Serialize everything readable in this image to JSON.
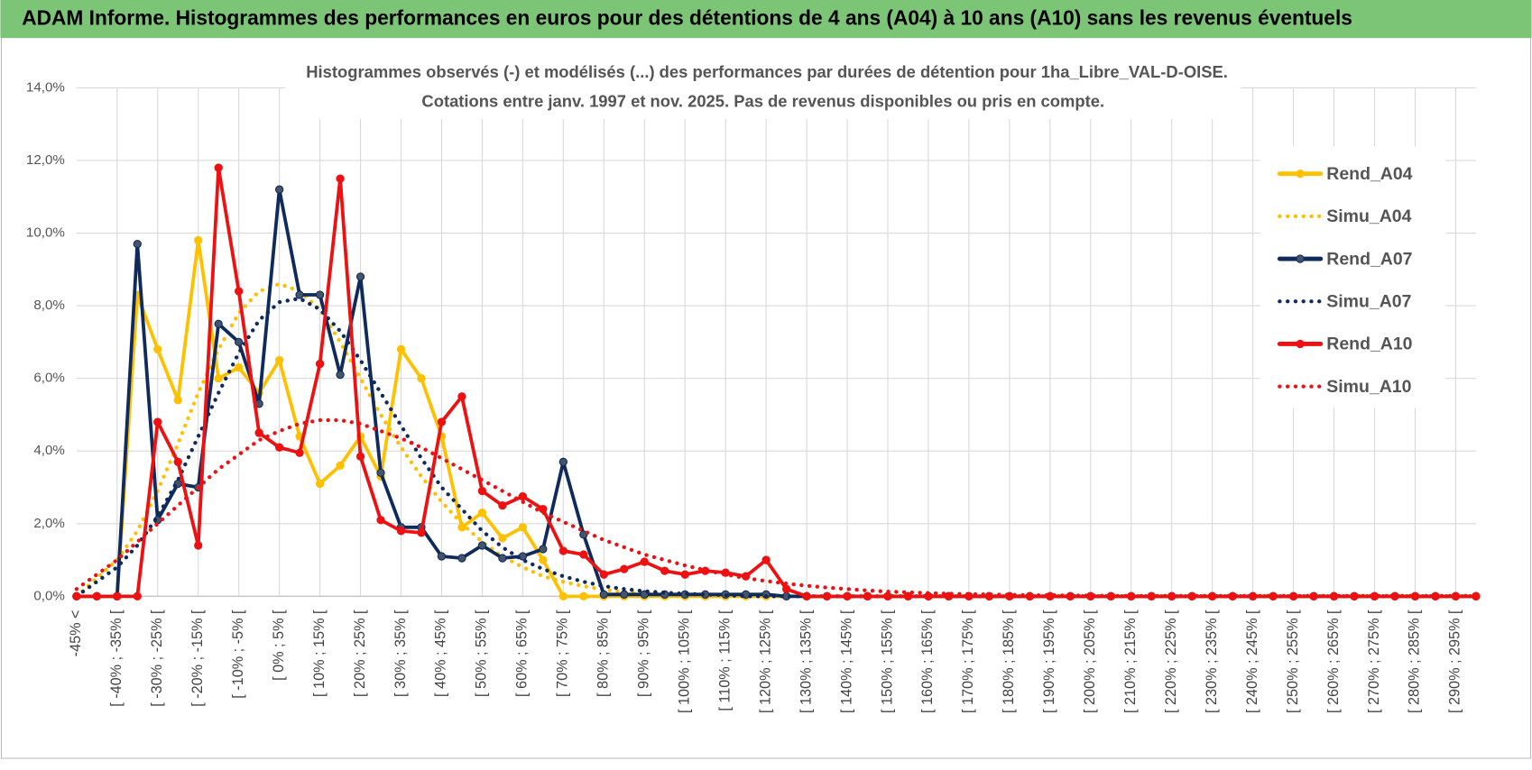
{
  "chart_data": {
    "type": "line",
    "header": "ADAM Informe. Histogrammes des performances en euros pour des détentions de 4 ans (A04) à 10 ans (A10) sans les revenus éventuels",
    "title": "Histogrammes observés (-) et modélisés (...) des performances par durées de détention pour 1ha_Libre_VAL-D-OISE.",
    "subtitle": "Cotations entre janv. 1997 et nov. 2025. Pas de revenus disponibles ou pris en compte.",
    "categories": [
      "-45% <",
      null,
      "[ -40% ; -35% [",
      null,
      "[ -30% ; -25% [",
      null,
      "[ -20% ; -15% [",
      null,
      "[ -10% ; -5% [",
      null,
      "[ 0% ; 5% [",
      null,
      "[ 10% ; 15% [",
      null,
      "[ 20% ; 25% [",
      null,
      "[ 30% ; 35% [",
      null,
      "[ 40% ; 45% [",
      null,
      "[ 50% ; 55% [",
      null,
      "[ 60% ; 65% [",
      null,
      "[ 70% ; 75% [",
      null,
      "[ 80% ; 85% [",
      null,
      "[ 90% ; 95% [",
      null,
      "[ 100% ; 105% [",
      null,
      "[ 110% ; 115% [",
      null,
      "[ 120% ; 125% [",
      null,
      "[ 130% ; 135% [",
      null,
      "[ 140% ; 145% [",
      null,
      "[ 150% ; 155% [",
      null,
      "[ 160% ; 165% [",
      null,
      "[ 170% ; 175% [",
      null,
      "[ 180% ; 185% [",
      null,
      "[ 190% ; 195% [",
      null,
      "[ 200% ; 205% [",
      null,
      "[ 210% ; 215% [",
      null,
      "[ 220% ; 225% [",
      null,
      "[ 230% ; 235% [",
      null,
      "[ 240% ; 245% [",
      null,
      "[ 250% ; 255% [",
      null,
      "[ 260% ; 265% [",
      null,
      "[ 270% ; 275% [",
      null,
      "[ 280% ; 285% [",
      null,
      "[ 290% ; 295% [",
      null
    ],
    "series": [
      {
        "name": "Rend_A04",
        "color": "#ffc000",
        "line_style": "solid",
        "markers": true,
        "values": [
          0,
          0,
          0,
          8.3,
          6.8,
          5.4,
          9.8,
          6.0,
          6.3,
          5.6,
          6.5,
          4.4,
          3.1,
          3.6,
          4.4,
          3.3,
          6.8,
          6.0,
          4.4,
          1.9,
          2.3,
          1.6,
          1.9,
          1.0,
          0,
          0,
          0,
          0,
          0,
          0,
          0,
          0,
          0,
          0,
          0,
          0,
          0,
          0,
          0,
          0,
          0,
          0,
          0,
          0,
          0,
          0,
          0,
          0,
          0,
          0,
          0,
          0,
          0,
          0,
          0,
          0,
          0,
          0,
          0,
          0,
          0,
          0,
          0,
          0,
          0,
          0,
          0,
          0,
          0,
          0
        ]
      },
      {
        "name": "Simu_A04",
        "color": "#ffc000",
        "line_style": "dotted",
        "markers": false,
        "values": [
          0,
          0.5,
          1.0,
          1.8,
          2.9,
          4.2,
          5.6,
          6.8,
          7.8,
          8.4,
          8.6,
          8.4,
          7.9,
          7.0,
          6.0,
          5.0,
          4.1,
          3.3,
          2.6,
          2.0,
          1.5,
          1.1,
          0.8,
          0.55,
          0.4,
          0.28,
          0.18,
          0.12,
          0.08,
          0.05,
          0.03,
          0,
          0,
          0,
          0,
          0,
          0,
          0,
          0,
          0,
          0,
          0,
          0,
          0,
          0,
          0,
          0,
          0,
          0,
          0,
          0,
          0,
          0,
          0,
          0,
          0,
          0,
          0,
          0,
          0,
          0,
          0,
          0,
          0,
          0,
          0,
          0,
          0,
          0,
          0
        ]
      },
      {
        "name": "Rend_A07",
        "color": "#0f2a5c",
        "line_style": "solid",
        "markers": true,
        "values": [
          0,
          0,
          0,
          9.7,
          2.1,
          3.1,
          3.0,
          7.5,
          7.0,
          5.3,
          11.2,
          8.3,
          8.3,
          6.1,
          8.8,
          3.4,
          1.9,
          1.9,
          1.1,
          1.05,
          1.4,
          1.05,
          1.1,
          1.3,
          3.7,
          1.7,
          0.05,
          0.05,
          0.05,
          0.05,
          0.05,
          0.05,
          0.05,
          0.05,
          0.05,
          0,
          0,
          0,
          0,
          0,
          0,
          0,
          0,
          0,
          0,
          0,
          0,
          0,
          0,
          0,
          0,
          0,
          0,
          0,
          0,
          0,
          0,
          0,
          0,
          0,
          0,
          0,
          0,
          0,
          0,
          0,
          0,
          0,
          0,
          0
        ]
      },
      {
        "name": "Simu_A07",
        "color": "#0f2a5c",
        "line_style": "dotted",
        "markers": false,
        "values": [
          0,
          0.4,
          0.8,
          1.4,
          2.2,
          3.2,
          4.4,
          5.6,
          6.7,
          7.6,
          8.1,
          8.2,
          7.9,
          7.3,
          6.5,
          5.6,
          4.7,
          3.8,
          3.0,
          2.4,
          1.8,
          1.35,
          1.0,
          0.75,
          0.55,
          0.4,
          0.28,
          0.2,
          0.14,
          0.1,
          0.07,
          0.05,
          0.03,
          0,
          0,
          0,
          0,
          0,
          0,
          0,
          0,
          0,
          0,
          0,
          0,
          0,
          0,
          0,
          0,
          0,
          0,
          0,
          0,
          0,
          0,
          0,
          0,
          0,
          0,
          0,
          0,
          0,
          0,
          0,
          0,
          0,
          0,
          0,
          0,
          0
        ]
      },
      {
        "name": "Rend_A10",
        "color": "#ee1111",
        "line_style": "solid",
        "markers": true,
        "values": [
          0,
          0,
          0,
          0,
          4.8,
          3.7,
          1.4,
          11.8,
          8.4,
          4.5,
          4.1,
          3.95,
          6.4,
          11.5,
          3.85,
          2.1,
          1.8,
          1.75,
          4.8,
          5.5,
          2.9,
          2.5,
          2.75,
          2.4,
          1.25,
          1.15,
          0.6,
          0.75,
          0.95,
          0.7,
          0.6,
          0.7,
          0.65,
          0.55,
          1.0,
          0.2,
          0,
          0,
          0,
          0,
          0,
          0,
          0,
          0,
          0,
          0,
          0,
          0,
          0,
          0,
          0,
          0,
          0,
          0,
          0,
          0,
          0,
          0,
          0,
          0,
          0,
          0,
          0,
          0,
          0,
          0,
          0,
          0,
          0,
          0
        ]
      },
      {
        "name": "Simu_A10",
        "color": "#ee1111",
        "line_style": "dotted",
        "markers": false,
        "values": [
          0.2,
          0.6,
          1.0,
          1.5,
          2.0,
          2.5,
          3.0,
          3.5,
          3.9,
          4.3,
          4.55,
          4.75,
          4.85,
          4.85,
          4.75,
          4.55,
          4.35,
          4.1,
          3.8,
          3.5,
          3.2,
          2.9,
          2.6,
          2.3,
          2.05,
          1.8,
          1.55,
          1.35,
          1.15,
          1.0,
          0.85,
          0.72,
          0.6,
          0.5,
          0.42,
          0.35,
          0.29,
          0.24,
          0.2,
          0.16,
          0.13,
          0.11,
          0.09,
          0.07,
          0.06,
          0.05,
          0.04,
          0.03,
          0.03,
          0.02,
          0.02,
          0.01,
          0.01,
          0.01,
          0.01,
          0.01,
          0.01,
          0.01,
          0.01,
          0.01,
          0.01,
          0.01,
          0.01,
          0.01,
          0.01,
          0.01,
          0.01,
          0.01,
          0.01,
          0.01
        ]
      }
    ],
    "ylim": [
      0,
      14
    ],
    "yticks": [
      {
        "value": 0,
        "label": "0,0%"
      },
      {
        "value": 2,
        "label": "2,0%"
      },
      {
        "value": 4,
        "label": "4,0%"
      },
      {
        "value": 6,
        "label": "6,0%"
      },
      {
        "value": 8,
        "label": "8,0%"
      },
      {
        "value": 10,
        "label": "10,0%"
      },
      {
        "value": 12,
        "label": "12,0%"
      },
      {
        "value": 14,
        "label": "14,0%"
      }
    ],
    "grid": true,
    "legend": "right"
  }
}
